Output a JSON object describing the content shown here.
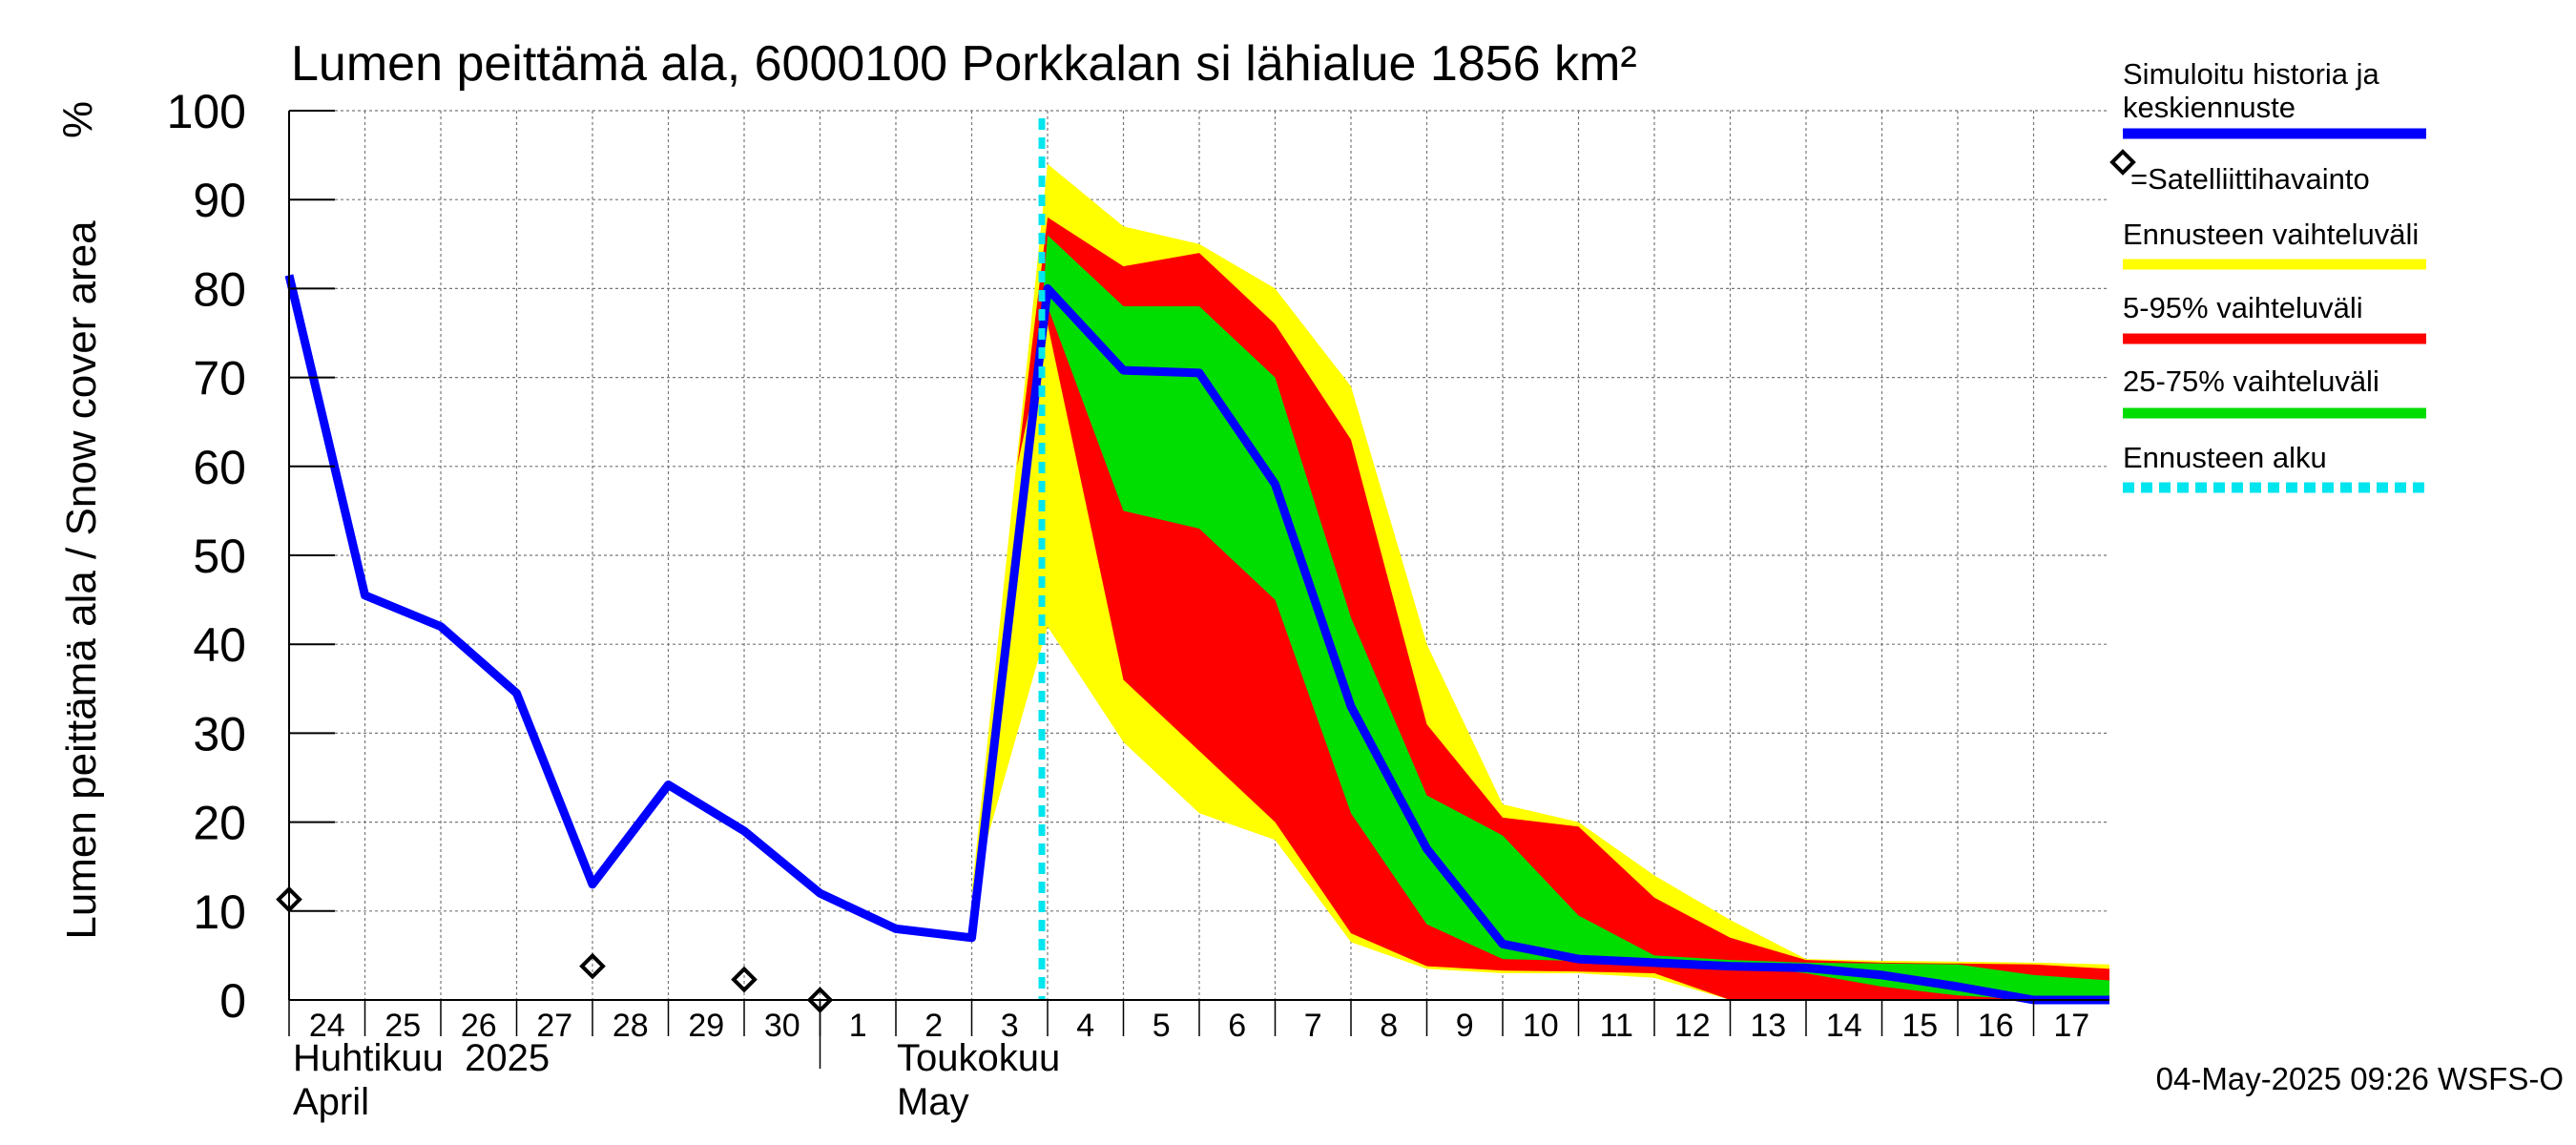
{
  "chart_data": {
    "type": "area",
    "title": "Lumen peittämä ala, 6000100 Porkkalan si lähialue 1856 km²",
    "ylabel": "Lumen peittämä ala / Snow cover area",
    "yunit": "%",
    "ylim": [
      0,
      100
    ],
    "yticks": [
      0,
      10,
      20,
      30,
      40,
      50,
      60,
      70,
      80,
      90,
      100
    ],
    "grid": true,
    "x_day_range": [
      0,
      24
    ],
    "day_labels": [
      {
        "day": 0,
        "label": "24"
      },
      {
        "day": 1,
        "label": "25"
      },
      {
        "day": 2,
        "label": "26"
      },
      {
        "day": 3,
        "label": "27"
      },
      {
        "day": 4,
        "label": "28"
      },
      {
        "day": 5,
        "label": "29"
      },
      {
        "day": 6,
        "label": "30"
      },
      {
        "day": 7,
        "label": "1"
      },
      {
        "day": 8,
        "label": "2"
      },
      {
        "day": 9,
        "label": "3"
      },
      {
        "day": 10,
        "label": "4"
      },
      {
        "day": 11,
        "label": "5"
      },
      {
        "day": 12,
        "label": "6"
      },
      {
        "day": 13,
        "label": "7"
      },
      {
        "day": 14,
        "label": "8"
      },
      {
        "day": 15,
        "label": "9"
      },
      {
        "day": 16,
        "label": "10"
      },
      {
        "day": 17,
        "label": "11"
      },
      {
        "day": 18,
        "label": "12"
      },
      {
        "day": 19,
        "label": "13"
      },
      {
        "day": 20,
        "label": "14"
      },
      {
        "day": 21,
        "label": "15"
      },
      {
        "day": 22,
        "label": "16"
      },
      {
        "day": 23,
        "label": "17"
      }
    ],
    "month_labels": {
      "april_fi": "Huhtikuu  2025",
      "april_en": "April",
      "may_fi": "Toukokuu",
      "may_en": "May"
    },
    "month_boundary_day": 7,
    "forecast_start_day": 10,
    "series": [
      {
        "name": "Simuloitu historia ja keskiennuste",
        "color": "#0000ff",
        "x": [
          0,
          1,
          2,
          3,
          4,
          5,
          6,
          7,
          8,
          9,
          10,
          11,
          12,
          13,
          14,
          15,
          16,
          17,
          18,
          19,
          20,
          21,
          22,
          23,
          24
        ],
        "y": [
          81.5,
          45.5,
          42,
          34.5,
          13,
          24.2,
          19,
          12,
          8,
          7,
          80,
          70.8,
          70.5,
          58,
          33,
          17,
          6.3,
          4.6,
          4.2,
          3.8,
          3.6,
          2.8,
          1.5,
          0,
          0
        ]
      }
    ],
    "bands": [
      {
        "name": "Ennusteen vaihteluväli",
        "color": "#ffff00",
        "x": [
          9,
          10,
          11,
          12,
          13,
          14,
          15,
          16,
          17,
          18,
          19,
          20,
          21,
          22,
          23,
          24
        ],
        "upper": [
          12,
          94,
          87,
          85,
          80,
          69,
          40,
          22,
          20,
          14,
          9,
          4.6,
          4.4,
          4.3,
          4.2,
          4
        ],
        "lower": [
          12,
          42,
          29,
          21,
          18,
          6.5,
          3.5,
          3,
          3,
          2.5,
          0,
          0,
          0,
          0,
          0,
          0
        ]
      },
      {
        "name": "5-95% vaihteluväli",
        "color": "#ff0000",
        "x": [
          9.6,
          10,
          11,
          12,
          13,
          14,
          15,
          16,
          17,
          18,
          19,
          20,
          21,
          22,
          23,
          24
        ],
        "upper": [
          60,
          88,
          82.5,
          84,
          76,
          63,
          31,
          20.5,
          19.5,
          11.5,
          7,
          4.5,
          4.2,
          4.1,
          4,
          3.5
        ],
        "lower": [
          60,
          76,
          36,
          28,
          20,
          7.5,
          3.8,
          3.3,
          3.2,
          3,
          0,
          0,
          0,
          0,
          0,
          0
        ]
      },
      {
        "name": "25-75% vaihteluväli",
        "color": "#00dd00",
        "x": [
          9.9,
          10,
          11,
          12,
          13,
          14,
          15,
          16,
          17,
          18,
          19,
          20,
          21,
          22,
          23,
          24
        ],
        "upper": [
          75,
          86,
          78,
          78,
          70,
          43,
          23,
          18.5,
          9.5,
          5,
          4.5,
          4.2,
          4.1,
          4,
          2.8,
          2.2
        ],
        "lower": [
          75,
          78,
          55,
          53,
          45,
          21,
          8.5,
          4.6,
          4.4,
          4.3,
          4.0,
          3.0,
          1.5,
          0.5,
          0,
          0
        ]
      }
    ],
    "satellite_observations": {
      "name": "=Satelliittihavainto",
      "x": [
        0,
        4,
        6,
        7
      ],
      "y": [
        11.3,
        3.8,
        2.3,
        0
      ]
    },
    "legend": {
      "placement": "right",
      "items": [
        {
          "label": "Simuloitu historia ja",
          "label2": "keskiennuste",
          "color": "#0000ff",
          "style": "line"
        },
        {
          "label": "=Satelliittihavainto",
          "label2": "",
          "color": "#000000",
          "style": "diamond"
        },
        {
          "label": "Ennusteen vaihteluväli",
          "label2": "",
          "color": "#ffff00",
          "style": "line"
        },
        {
          "label": "5-95% vaihteluväli",
          "label2": "",
          "color": "#ff0000",
          "style": "line"
        },
        {
          "label": "25-75% vaihteluväli",
          "label2": "",
          "color": "#00dd00",
          "style": "line"
        },
        {
          "label": "Ennusteen alku",
          "label2": "",
          "color": "#00e5ee",
          "style": "dashed"
        }
      ]
    },
    "footer": "04-May-2025 09:26 WSFS-O"
  },
  "colors": {
    "mean_line": "#0000ff",
    "yellow_band": "#ffff00",
    "red_band": "#ff0000",
    "green_band": "#00dd00",
    "forecast_start": "#00e5ee"
  }
}
